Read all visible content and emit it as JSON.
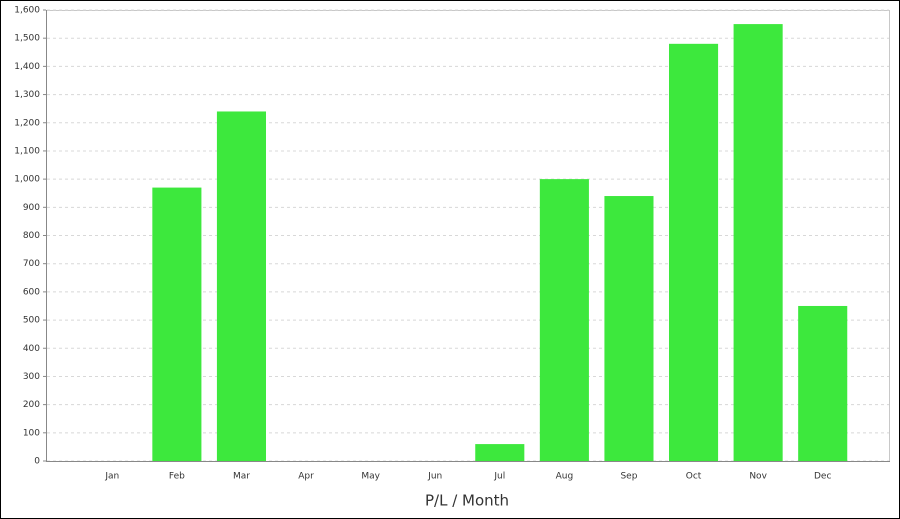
{
  "chart_data": {
    "type": "bar",
    "x_label": "P/L / Month",
    "categories": [
      "Jan",
      "Feb",
      "Mar",
      "Apr",
      "May",
      "Jun",
      "Jul",
      "Aug",
      "Sep",
      "Oct",
      "Nov",
      "Dec"
    ],
    "values": [
      0,
      970,
      1240,
      0,
      0,
      0,
      60,
      1000,
      940,
      1480,
      1550,
      550
    ],
    "color": "#3de83d",
    "ylim": [
      0,
      1600
    ],
    "yticks": [
      0,
      100,
      200,
      300,
      400,
      500,
      600,
      700,
      800,
      900,
      {
        "value": 1000,
        "label": "1,000"
      },
      {
        "value": 1100,
        "label": "1,100"
      },
      {
        "value": 1200,
        "label": "1,200"
      },
      {
        "value": 1300,
        "label": "1,300"
      },
      {
        "value": 1400,
        "label": "1,400"
      },
      {
        "value": 1500,
        "label": "1,500"
      },
      {
        "value": 1600,
        "label": "1,600"
      }
    ],
    "grid": true
  }
}
